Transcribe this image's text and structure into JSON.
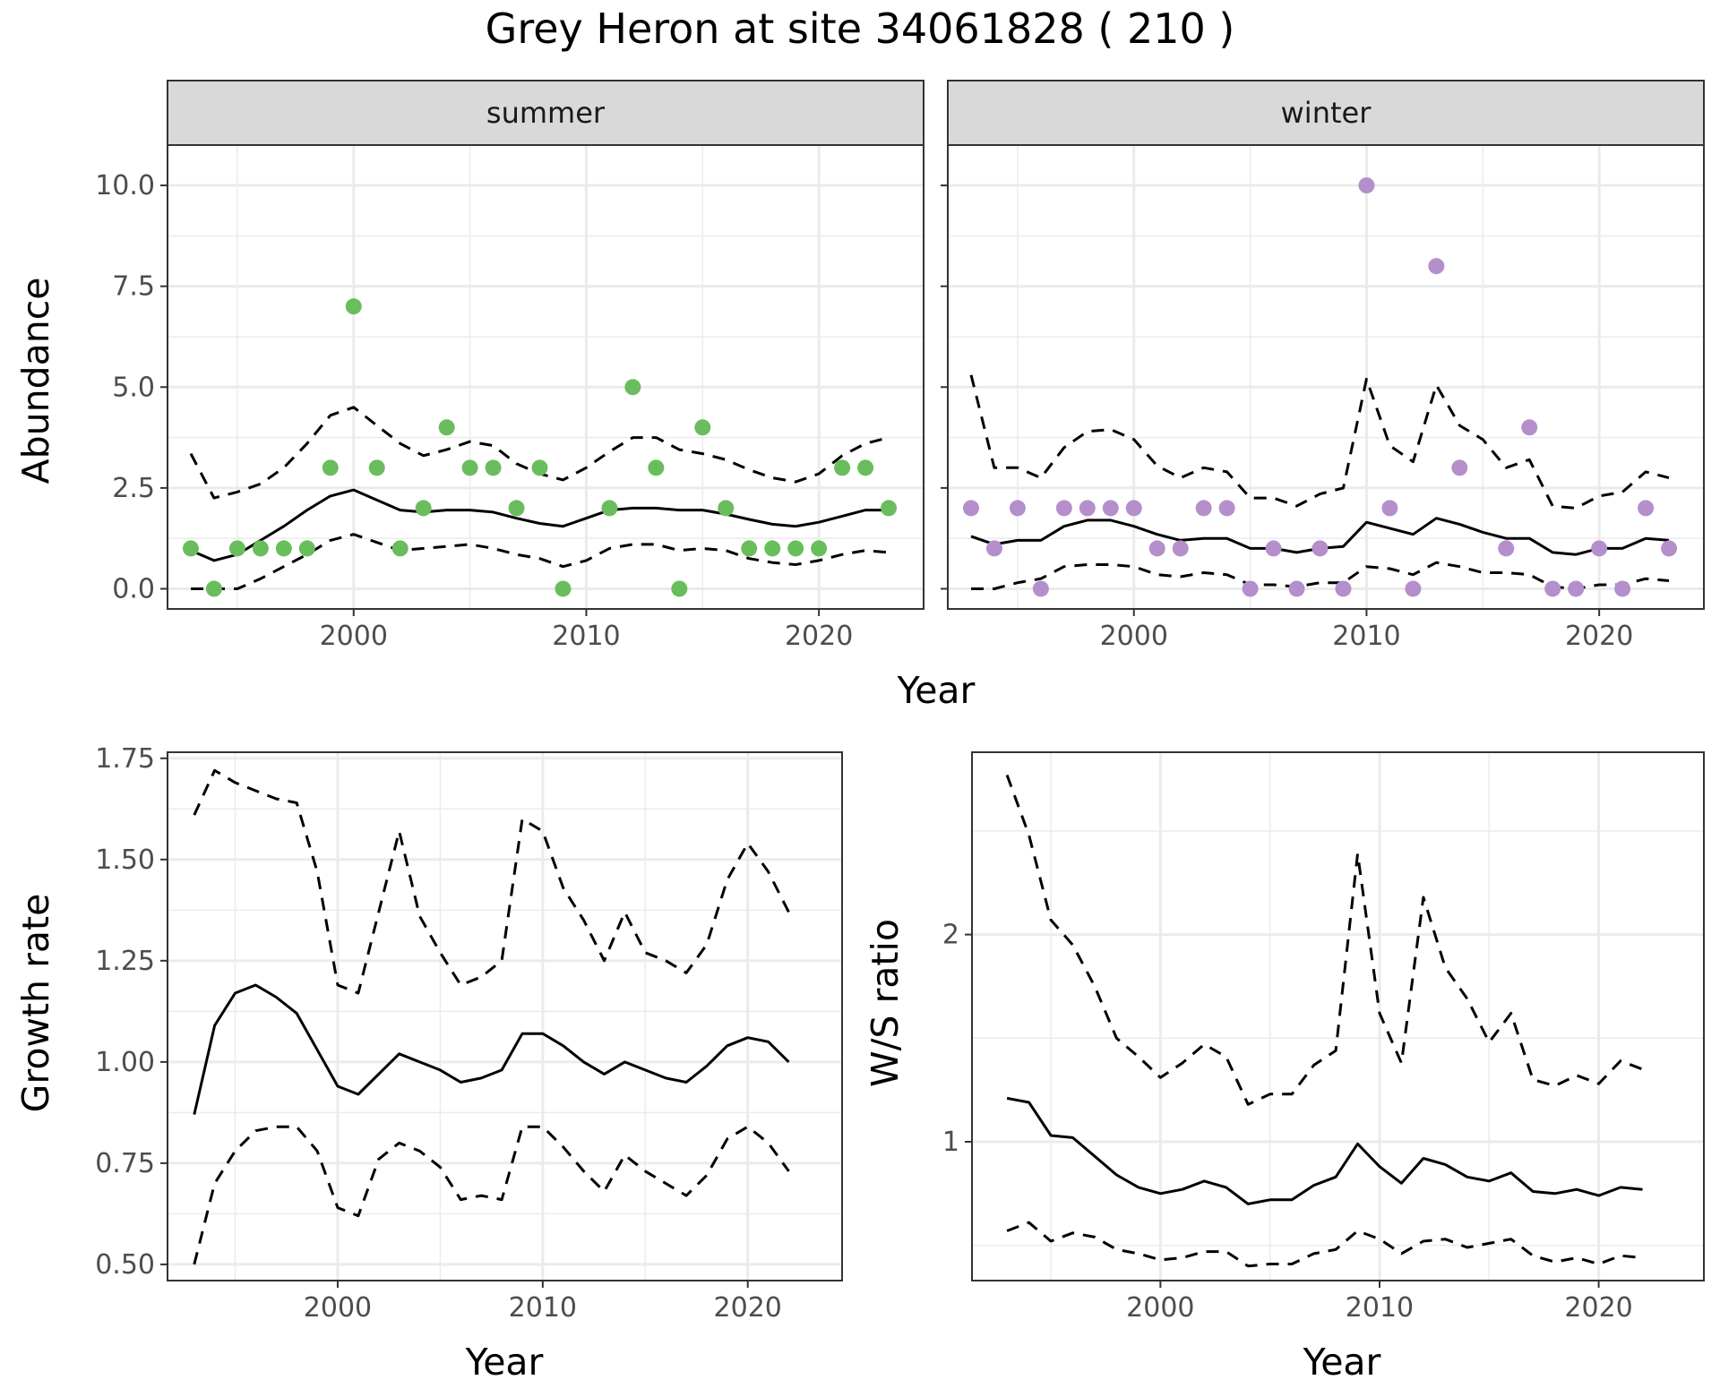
{
  "title": "Grey Heron at site 34061828 ( 210 )",
  "top": {
    "ylabel": "Abundance",
    "xlabel": "Year"
  },
  "chart_data": [
    {
      "type": "scatter",
      "panel": "summer",
      "xlabel": "Year",
      "ylabel": "Abundance",
      "xlim": [
        1992,
        2024.5
      ],
      "ylim": [
        -0.5,
        11
      ],
      "xticks": [
        2000,
        2010,
        2020
      ],
      "yticks": [
        0.0,
        2.5,
        5.0,
        7.5,
        10.0
      ],
      "ytick_labels": [
        "0.0",
        "2.5",
        "5.0",
        "7.5",
        "10.0"
      ],
      "point_color": "#6abd5c",
      "points": {
        "x": [
          1993,
          1994,
          1995,
          1996,
          1997,
          1998,
          1999,
          2000,
          2001,
          2002,
          2003,
          2004,
          2005,
          2006,
          2007,
          2008,
          2009,
          2011,
          2012,
          2013,
          2014,
          2015,
          2016,
          2017,
          2018,
          2019,
          2020,
          2021,
          2022,
          2023
        ],
        "y": [
          1,
          0,
          1,
          1,
          1,
          1,
          3,
          7,
          3,
          1,
          2,
          4,
          3,
          3,
          2,
          3,
          0,
          2,
          5,
          3,
          0,
          4,
          2,
          1,
          1,
          1,
          1,
          3,
          3,
          2
        ]
      },
      "fit": {
        "x": [
          1993,
          1994,
          1995,
          1996,
          1997,
          1998,
          1999,
          2000,
          2001,
          2002,
          2003,
          2004,
          2005,
          2006,
          2007,
          2008,
          2009,
          2010,
          2011,
          2012,
          2013,
          2014,
          2015,
          2016,
          2017,
          2018,
          2019,
          2020,
          2021,
          2022,
          2023
        ],
        "y": [
          0.95,
          0.7,
          0.85,
          1.2,
          1.55,
          1.95,
          2.3,
          2.45,
          2.2,
          1.95,
          1.9,
          1.95,
          1.95,
          1.9,
          1.75,
          1.62,
          1.55,
          1.75,
          1.95,
          2.0,
          2.0,
          1.95,
          1.95,
          1.85,
          1.72,
          1.6,
          1.55,
          1.65,
          1.8,
          1.95,
          1.95
        ]
      },
      "upper": {
        "x": [
          1993,
          1994,
          1995,
          1996,
          1997,
          1998,
          1999,
          2000,
          2001,
          2002,
          2003,
          2004,
          2005,
          2006,
          2007,
          2008,
          2009,
          2010,
          2011,
          2012,
          2013,
          2014,
          2015,
          2016,
          2017,
          2018,
          2019,
          2020,
          2021,
          2022,
          2023
        ],
        "y": [
          3.35,
          2.25,
          2.4,
          2.6,
          3.0,
          3.6,
          4.3,
          4.5,
          4.05,
          3.6,
          3.3,
          3.45,
          3.65,
          3.55,
          3.1,
          2.85,
          2.7,
          3.0,
          3.4,
          3.75,
          3.75,
          3.45,
          3.35,
          3.2,
          2.95,
          2.75,
          2.65,
          2.85,
          3.3,
          3.6,
          3.75
        ]
      },
      "lower": {
        "x": [
          1993,
          1994,
          1995,
          1996,
          1997,
          1998,
          1999,
          2000,
          2001,
          2002,
          2003,
          2004,
          2005,
          2006,
          2007,
          2008,
          2009,
          2010,
          2011,
          2012,
          2013,
          2014,
          2015,
          2016,
          2017,
          2018,
          2019,
          2020,
          2021,
          2022,
          2023
        ],
        "y": [
          0.0,
          0.0,
          0.0,
          0.25,
          0.55,
          0.85,
          1.2,
          1.35,
          1.15,
          0.95,
          1.0,
          1.05,
          1.1,
          1.0,
          0.85,
          0.75,
          0.55,
          0.7,
          1.0,
          1.1,
          1.1,
          0.95,
          1.0,
          0.95,
          0.75,
          0.65,
          0.6,
          0.7,
          0.85,
          0.95,
          0.9
        ]
      }
    },
    {
      "type": "scatter",
      "panel": "winter",
      "xlabel": "Year",
      "ylabel": "Abundance",
      "xlim": [
        1992,
        2024.5
      ],
      "ylim": [
        -0.5,
        11
      ],
      "xticks": [
        2000,
        2010,
        2020
      ],
      "yticks": [
        0.0,
        2.5,
        5.0,
        7.5,
        10.0
      ],
      "point_color": "#b48fcc",
      "points": {
        "x": [
          1993,
          1994,
          1995,
          1996,
          1997,
          1998,
          1999,
          2000,
          2001,
          2002,
          2003,
          2004,
          2005,
          2006,
          2007,
          2008,
          2009,
          2010,
          2011,
          2012,
          2013,
          2014,
          2016,
          2017,
          2018,
          2019,
          2020,
          2021,
          2022,
          2023
        ],
        "y": [
          2,
          1,
          2,
          0,
          2,
          2,
          2,
          2,
          1,
          1,
          2,
          2,
          0,
          1,
          0,
          1,
          0,
          10,
          2,
          0,
          8,
          3,
          1,
          4,
          0,
          0,
          1,
          0,
          2,
          1
        ]
      },
      "fit": {
        "x": [
          1993,
          1994,
          1995,
          1996,
          1997,
          1998,
          1999,
          2000,
          2001,
          2002,
          2003,
          2004,
          2005,
          2006,
          2007,
          2008,
          2009,
          2010,
          2011,
          2012,
          2013,
          2014,
          2015,
          2016,
          2017,
          2018,
          2019,
          2020,
          2021,
          2022,
          2023
        ],
        "y": [
          1.3,
          1.1,
          1.2,
          1.2,
          1.55,
          1.7,
          1.7,
          1.55,
          1.35,
          1.2,
          1.25,
          1.25,
          1.0,
          1.0,
          0.9,
          1.0,
          1.05,
          1.65,
          1.5,
          1.35,
          1.75,
          1.6,
          1.4,
          1.25,
          1.25,
          0.9,
          0.85,
          1.0,
          1.0,
          1.25,
          1.2
        ]
      },
      "upper": {
        "x": [
          1993,
          1994,
          1995,
          1996,
          1997,
          1998,
          1999,
          2000,
          2001,
          2002,
          2003,
          2004,
          2005,
          2006,
          2007,
          2008,
          2009,
          2010,
          2011,
          2012,
          2013,
          2014,
          2015,
          2016,
          2017,
          2018,
          2019,
          2020,
          2021,
          2022,
          2023
        ],
        "y": [
          5.3,
          3.0,
          3.0,
          2.75,
          3.5,
          3.9,
          3.95,
          3.7,
          3.05,
          2.75,
          3.0,
          2.9,
          2.25,
          2.25,
          2.05,
          2.35,
          2.5,
          5.2,
          3.55,
          3.15,
          5.05,
          4.05,
          3.7,
          3.0,
          3.2,
          2.05,
          2.0,
          2.3,
          2.4,
          2.9,
          2.75
        ]
      },
      "lower": {
        "x": [
          1993,
          1994,
          1995,
          1996,
          1997,
          1998,
          1999,
          2000,
          2001,
          2002,
          2003,
          2004,
          2005,
          2006,
          2007,
          2008,
          2009,
          2010,
          2011,
          2012,
          2013,
          2014,
          2015,
          2016,
          2017,
          2018,
          2019,
          2020,
          2021,
          2022,
          2023
        ],
        "y": [
          0.0,
          0.0,
          0.15,
          0.25,
          0.55,
          0.6,
          0.6,
          0.55,
          0.35,
          0.3,
          0.4,
          0.35,
          0.1,
          0.1,
          0.05,
          0.15,
          0.15,
          0.55,
          0.5,
          0.35,
          0.65,
          0.55,
          0.4,
          0.4,
          0.35,
          0.05,
          0.0,
          0.1,
          0.1,
          0.25,
          0.2
        ]
      }
    },
    {
      "type": "line",
      "panel": "growth",
      "xlabel": "Year",
      "ylabel": "Growth rate",
      "xlim": [
        1991.7,
        2024.6
      ],
      "ylim": [
        0.46,
        1.765
      ],
      "xticks": [
        2000,
        2010,
        2020
      ],
      "yticks": [
        0.5,
        0.75,
        1.0,
        1.25,
        1.5,
        1.75
      ],
      "ytick_labels": [
        "0.50",
        "0.75",
        "1.00",
        "1.25",
        "1.50",
        "1.75"
      ],
      "fit": {
        "x": [
          1993,
          1994,
          1995,
          1996,
          1997,
          1998,
          1999,
          2000,
          2001,
          2002,
          2003,
          2004,
          2005,
          2006,
          2007,
          2008,
          2009,
          2010,
          2011,
          2012,
          2013,
          2014,
          2015,
          2016,
          2017,
          2018,
          2019,
          2020,
          2021,
          2022
        ],
        "y": [
          0.87,
          1.09,
          1.17,
          1.19,
          1.16,
          1.12,
          1.03,
          0.94,
          0.92,
          0.97,
          1.02,
          1.0,
          0.98,
          0.95,
          0.96,
          0.98,
          1.07,
          1.07,
          1.04,
          1.0,
          0.97,
          1.0,
          0.98,
          0.96,
          0.95,
          0.99,
          1.04,
          1.06,
          1.05,
          1.0
        ]
      },
      "upper": {
        "x": [
          1993,
          1994,
          1995,
          1996,
          1997,
          1998,
          1999,
          2000,
          2001,
          2002,
          2003,
          2004,
          2005,
          2006,
          2007,
          2008,
          2009,
          2010,
          2011,
          2012,
          2013,
          2014,
          2015,
          2016,
          2017,
          2018,
          2019,
          2020,
          2021,
          2022
        ],
        "y": [
          1.61,
          1.72,
          1.69,
          1.67,
          1.65,
          1.64,
          1.47,
          1.19,
          1.17,
          1.37,
          1.57,
          1.36,
          1.27,
          1.19,
          1.21,
          1.25,
          1.6,
          1.57,
          1.43,
          1.35,
          1.25,
          1.37,
          1.27,
          1.25,
          1.22,
          1.29,
          1.45,
          1.54,
          1.47,
          1.37
        ]
      },
      "lower": {
        "x": [
          1993,
          1994,
          1995,
          1996,
          1997,
          1998,
          1999,
          2000,
          2001,
          2002,
          2003,
          2004,
          2005,
          2006,
          2007,
          2008,
          2009,
          2010,
          2011,
          2012,
          2013,
          2014,
          2015,
          2016,
          2017,
          2018,
          2019,
          2020,
          2021,
          2022
        ],
        "y": [
          0.5,
          0.7,
          0.78,
          0.83,
          0.84,
          0.84,
          0.78,
          0.64,
          0.62,
          0.76,
          0.8,
          0.78,
          0.74,
          0.66,
          0.67,
          0.66,
          0.84,
          0.84,
          0.79,
          0.73,
          0.68,
          0.77,
          0.73,
          0.7,
          0.67,
          0.72,
          0.81,
          0.84,
          0.8,
          0.73
        ]
      }
    },
    {
      "type": "line",
      "panel": "ws_ratio",
      "xlabel": "Year",
      "ylabel": "W/S ratio",
      "xlim": [
        1991.4,
        2024.8
      ],
      "ylim": [
        0.33,
        2.88
      ],
      "xticks": [
        2000,
        2010,
        2020
      ],
      "yticks": [
        1,
        2
      ],
      "ytick_labels": [
        "1",
        "2"
      ],
      "fit": {
        "x": [
          1993,
          1994,
          1995,
          1996,
          1997,
          1998,
          1999,
          2000,
          2001,
          2002,
          2003,
          2004,
          2005,
          2006,
          2007,
          2008,
          2009,
          2010,
          2011,
          2012,
          2013,
          2014,
          2015,
          2016,
          2017,
          2018,
          2019,
          2020,
          2021,
          2022
        ],
        "y": [
          1.21,
          1.19,
          1.03,
          1.02,
          0.93,
          0.84,
          0.78,
          0.75,
          0.77,
          0.81,
          0.78,
          0.7,
          0.72,
          0.72,
          0.79,
          0.83,
          0.99,
          0.88,
          0.8,
          0.92,
          0.89,
          0.83,
          0.81,
          0.85,
          0.76,
          0.75,
          0.77,
          0.74,
          0.78,
          0.77
        ]
      },
      "upper": {
        "x": [
          1993,
          1994,
          1995,
          1996,
          1997,
          1998,
          1999,
          2000,
          2001,
          2002,
          2003,
          2004,
          2005,
          2006,
          2007,
          2008,
          2009,
          2010,
          2011,
          2012,
          2013,
          2014,
          2015,
          2016,
          2017,
          2018,
          2019,
          2020,
          2021,
          2022
        ],
        "y": [
          2.77,
          2.48,
          2.07,
          1.95,
          1.75,
          1.5,
          1.41,
          1.31,
          1.38,
          1.47,
          1.41,
          1.18,
          1.23,
          1.23,
          1.37,
          1.44,
          2.39,
          1.62,
          1.38,
          2.18,
          1.84,
          1.69,
          1.48,
          1.62,
          1.3,
          1.27,
          1.32,
          1.28,
          1.39,
          1.35
        ]
      },
      "lower": {
        "x": [
          1993,
          1994,
          1995,
          1996,
          1997,
          1998,
          1999,
          2000,
          2001,
          2002,
          2003,
          2004,
          2005,
          2006,
          2007,
          2008,
          2009,
          2010,
          2011,
          2012,
          2013,
          2014,
          2015,
          2016,
          2017,
          2018,
          2019,
          2020,
          2021,
          2022
        ],
        "y": [
          0.57,
          0.61,
          0.52,
          0.56,
          0.54,
          0.48,
          0.46,
          0.43,
          0.44,
          0.47,
          0.47,
          0.4,
          0.41,
          0.41,
          0.46,
          0.48,
          0.57,
          0.53,
          0.46,
          0.52,
          0.53,
          0.49,
          0.51,
          0.53,
          0.45,
          0.42,
          0.44,
          0.41,
          0.45,
          0.44
        ]
      }
    }
  ]
}
